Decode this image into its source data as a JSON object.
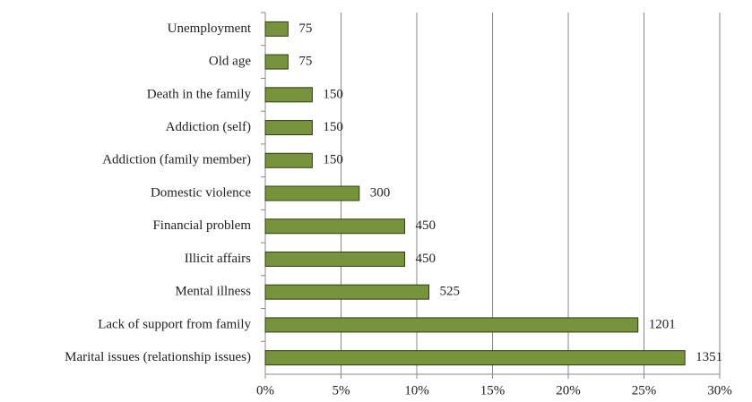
{
  "chart_data": {
    "type": "barh",
    "categories": [
      "Unemployment",
      "Old age",
      "Death in the family",
      "Addiction (self)",
      "Addiction (family member)",
      "Domestic violence",
      "Financial problem",
      "Illicit affairs",
      "Mental illness",
      "Lack of support from family",
      "Marital issues (relationship issues)"
    ],
    "values": [
      1.5,
      1.5,
      3.1,
      3.1,
      3.1,
      6.2,
      9.2,
      9.2,
      10.8,
      24.6,
      27.7
    ],
    "counts": [
      75,
      75,
      150,
      150,
      150,
      300,
      450,
      450,
      525,
      1201,
      1351
    ],
    "color": "#77933c",
    "xlim": [
      0,
      30
    ],
    "xticks": [
      {
        "value": 0,
        "label": "0%"
      },
      {
        "value": 5,
        "label": "5%"
      },
      {
        "value": 10,
        "label": "10%"
      },
      {
        "value": 15,
        "label": "15%"
      },
      {
        "value": 20,
        "label": "20%"
      },
      {
        "value": 25,
        "label": "25%"
      },
      {
        "value": 30,
        "label": "30%"
      }
    ],
    "grid": true
  }
}
